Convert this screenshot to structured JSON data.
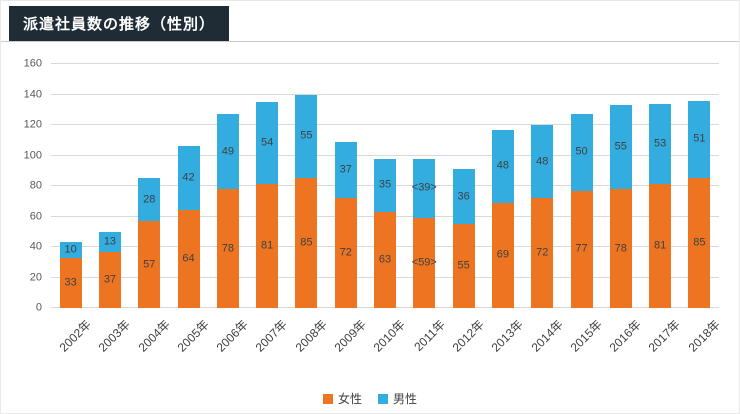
{
  "header": {
    "title": "派遣社員数の推移（性別）"
  },
  "colors": {
    "title_bg": "#1f2b35",
    "female": "#ED7421",
    "male": "#33ACE0",
    "gridline": "#D9D9D9",
    "axis_text": "#595959",
    "label_text": "#404040"
  },
  "chart_data": {
    "type": "bar",
    "stacked": true,
    "title": "派遣社員数の推移（性別）",
    "categories": [
      "2002年",
      "2003年",
      "2004年",
      "2005年",
      "2006年",
      "2007年",
      "2008年",
      "2009年",
      "2010年",
      "2011年",
      "2012年",
      "2013年",
      "2014年",
      "2015年",
      "2016年",
      "2017年",
      "2018年"
    ],
    "series": [
      {
        "name": "女性",
        "key": "female",
        "color": "#ED7421",
        "values": [
          33,
          37,
          57,
          64,
          78,
          81,
          85,
          72,
          63,
          59,
          55,
          69,
          72,
          77,
          78,
          81,
          85
        ],
        "labels": [
          "33",
          "37",
          "57",
          "64",
          "78",
          "81",
          "85",
          "72",
          "63",
          "<59>",
          "55",
          "69",
          "72",
          "77",
          "78",
          "81",
          "85"
        ]
      },
      {
        "name": "男性",
        "key": "male",
        "color": "#33ACE0",
        "values": [
          10,
          13,
          28,
          42,
          49,
          54,
          55,
          37,
          35,
          39,
          36,
          48,
          48,
          50,
          55,
          53,
          51
        ],
        "labels": [
          "10",
          "13",
          "28",
          "42",
          "49",
          "54",
          "55",
          "37",
          "35",
          "<39>",
          "36",
          "48",
          "48",
          "50",
          "55",
          "53",
          "51"
        ]
      }
    ],
    "xlabel": "",
    "ylabel": "",
    "ylim": [
      0,
      160
    ],
    "yticks": [
      0,
      20,
      40,
      60,
      80,
      100,
      120,
      140,
      160
    ],
    "grid": true,
    "legend_position": "bottom"
  }
}
